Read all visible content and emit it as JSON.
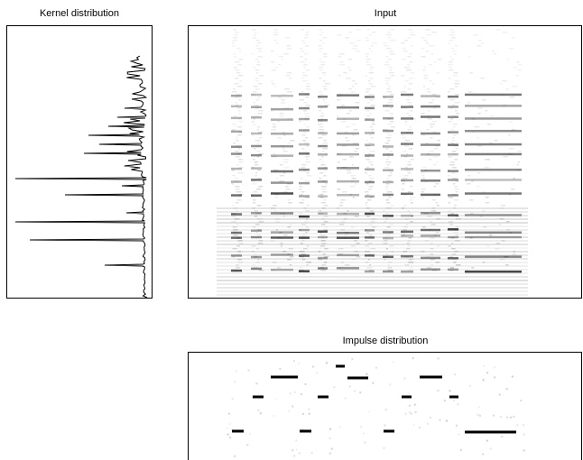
{
  "panels": [
    {
      "title": "Kernel distribution"
    },
    {
      "title": "Input"
    },
    {
      "title": "Impulse distribution"
    }
  ]
}
